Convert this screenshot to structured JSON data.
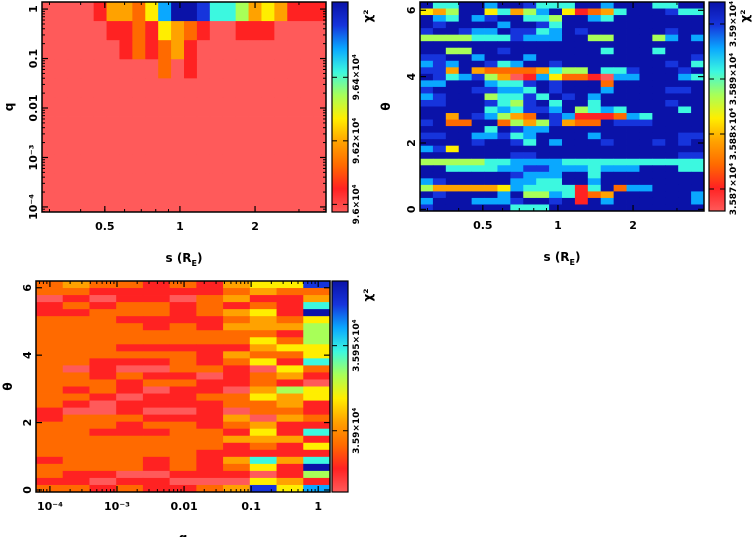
{
  "colormap": [
    "#ff5a5a",
    "#ff2222",
    "#ff6a00",
    "#ffa200",
    "#ffee00",
    "#a8ff58",
    "#3cf8e0",
    "#0aa8ff",
    "#1634dc",
    "#0a12a8"
  ],
  "chart_data": [
    {
      "type": "heatmap",
      "name": "chi2-s-q",
      "xlabel": {
        "main": "s (R",
        "sub": "E",
        "end": ")"
      },
      "ylabel": "q",
      "zlabel": "χ²",
      "xscale": "log",
      "yscale": "log",
      "xlim": [
        0.28,
        3.85
      ],
      "ylim": [
        7.9e-05,
        1.39
      ],
      "zlim": [
        95976,
        96637
      ],
      "xticks": [
        {
          "v": 0.5,
          "label": "0.5"
        },
        {
          "v": 1,
          "label": "1"
        },
        {
          "v": 2,
          "label": "2"
        }
      ],
      "yticks": [
        {
          "v": 0.0001,
          "label": "10⁻⁴"
        },
        {
          "v": 0.001,
          "label": "10⁻³"
        },
        {
          "v": 0.01,
          "label": "0.01"
        },
        {
          "v": 0.1,
          "label": "0.1"
        },
        {
          "v": 1,
          "label": "1"
        }
      ],
      "zticks": [
        {
          "v": 96000,
          "label": "9.6×10⁴"
        },
        {
          "v": 96200,
          "label": "9.62×10⁴"
        },
        {
          "v": 96400,
          "label": "9.64×10⁴"
        }
      ],
      "levels_note": "z quantized 0-9 across zlim, rows top to bottom",
      "matrix": [
        "0000133247998665343111",
        "0000011214321001110000",
        "0000001212310000000000",
        "0000000002010000000000",
        "0000000000000000000000",
        "0000000000000000000000",
        "0000000000000000000000",
        "0000000000000000000000",
        "0000000000000000000000",
        "0000000000000000000000",
        "0000000000000000000000"
      ]
    },
    {
      "type": "heatmap",
      "name": "chi2-s-theta",
      "xlabel": {
        "main": "s (R",
        "sub": "E",
        "end": ")"
      },
      "ylabel": "θ",
      "zlabel": "χ²",
      "xscale": "log",
      "yscale": "linear",
      "xlim": [
        0.28,
        3.85
      ],
      "ylim": [
        -0.05,
        6.25
      ],
      "zlim": [
        35866,
        35904
      ],
      "xticks": [
        {
          "v": 0.5,
          "label": "0.5"
        },
        {
          "v": 1,
          "label": "1"
        },
        {
          "v": 2,
          "label": "2"
        }
      ],
      "yticks": [
        {
          "v": 0,
          "label": "0"
        },
        {
          "v": 2,
          "label": "2"
        },
        {
          "v": 4,
          "label": "4"
        },
        {
          "v": 6,
          "label": "6"
        }
      ],
      "zticks": [
        {
          "v": 35870,
          "label": "3.587×10⁴"
        },
        {
          "v": 35880,
          "label": "3.588×10⁴"
        },
        {
          "v": 35890,
          "label": "3.589×10⁴"
        },
        {
          "v": 35900,
          "label": "3.59×10⁴"
        }
      ],
      "levels_note": "z quantized 0-9 across zlim, rows top to bottom",
      "matrix": [
        "9669979986669979996699",
        "4359946357941236999866",
        "9769789966599769999999",
        "9899997998699999999999",
        "8998779886798999999899",
        "5555666877799559995797",
        "9999999999999999999999",
        "9955998999999969996999",
        "8899799979999999999998",
        "7879986799899999999896",
        "8839322223655966899989",
        "9867853017422107799976",
        "7799976689899929999999",
        "8999887769899979999889",
        "7899956686989799999999",
        "8899986589699699999899",
        "9999967688795676999969",
        "9939875329871112769999",
        "8922992535832298889999",
        "9999969877999999999999",
        "8899778679999799999988",
        "9999899869799989998989",
        "7849999999999999999999",
        "9999999889999999999988",
        "5555566777766666666666",
        "9966667788777677799966",
        "9999999877799699999999",
        "7899999776699799999999",
        "5333334766661692779999",
        "9899997955761239999997",
        "7999777899891979999997",
        "8999999666999999999999"
      ]
    },
    {
      "type": "heatmap",
      "name": "chi2-q-theta",
      "xlabel": {
        "main": "q",
        "sub": "",
        "end": ""
      },
      "ylabel": "θ",
      "zlabel": "χ²",
      "xscale": "log",
      "yscale": "linear",
      "xlim": [
        6.2e-05,
        1.5
      ],
      "ylim": [
        -0.06,
        6.2
      ],
      "zlim": [
        35864,
        35988
      ],
      "xticks": [
        {
          "v": 0.0001,
          "label": "10⁻⁴"
        },
        {
          "v": 0.001,
          "label": "10⁻³"
        },
        {
          "v": 0.01,
          "label": "0.01"
        },
        {
          "v": 0.1,
          "label": "0.1"
        },
        {
          "v": 1,
          "label": "1"
        }
      ],
      "yticks": [
        {
          "v": 0,
          "label": "0"
        },
        {
          "v": 2,
          "label": "2"
        },
        {
          "v": 4,
          "label": "4"
        },
        {
          "v": 6,
          "label": "6"
        }
      ],
      "zticks": [
        {
          "v": 35900,
          "label": "3.59×10⁴"
        },
        {
          "v": 35950,
          "label": "3.595×10⁴"
        }
      ],
      "levels_note": "z quantized 0-9 across zlim, rows top to bottom",
      "matrix": [
        "23221213448",
        "22111112322",
        "01011023113",
        "12122121216",
        "11222123419",
        "22211112324",
        "22221213335",
        "22222222215",
        "22222222425",
        "22211111344",
        "22222213224",
        "22111212416",
        "20100221042",
        "22121101231",
        "22212211210",
        "21210110354",
        "22101122434",
        "21011112231",
        "10010010221",
        "12221113032",
        "22212212311",
        "22111221416",
        "22222223331",
        "22222221214",
        "22222211111",
        "12221213636",
        "22221212419",
        "21100111015",
        "11011000431",
        "22121123847"
      ]
    }
  ]
}
